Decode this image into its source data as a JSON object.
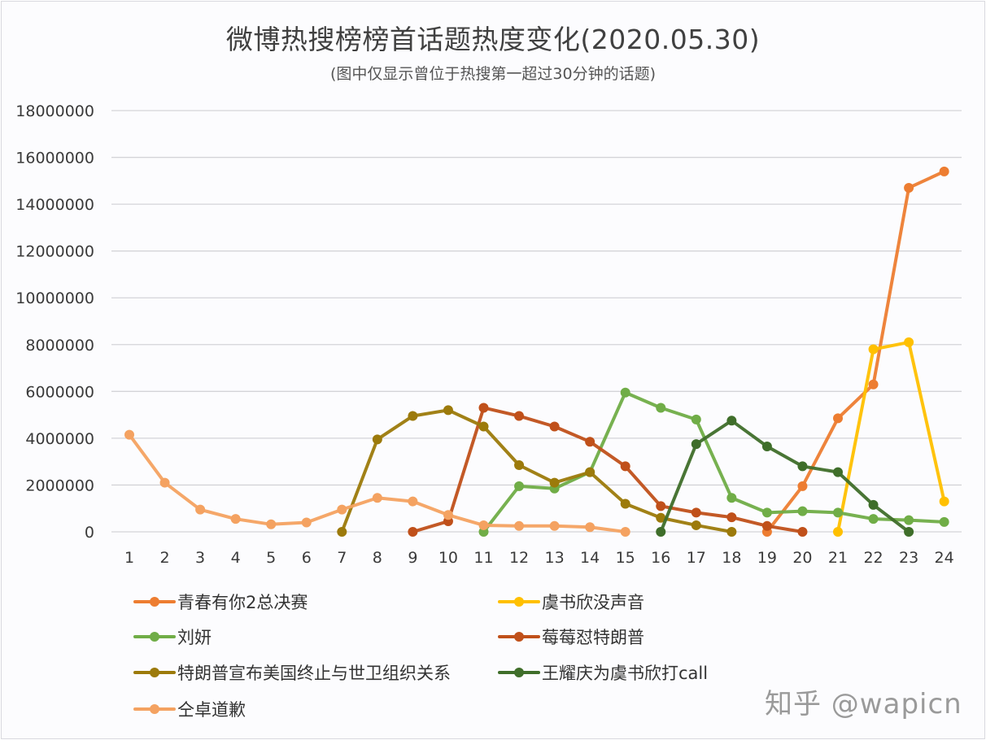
{
  "title": "微博热搜榜榜首话题热度变化(2020.05.30)",
  "subtitle": "(图中仅显示曾位于热搜第一超过30分钟的话题)",
  "watermark": "知乎 @wapicn",
  "chart_data": {
    "type": "line",
    "title": "微博热搜榜榜首话题热度变化(2020.05.30)",
    "subtitle": "(图中仅显示曾位于热搜第一超过30分钟的话题)",
    "xlabel": "",
    "ylabel": "",
    "x": [
      1,
      2,
      3,
      4,
      5,
      6,
      7,
      8,
      9,
      10,
      11,
      12,
      13,
      14,
      15,
      16,
      17,
      18,
      19,
      20,
      21,
      22,
      23,
      24
    ],
    "ylim": [
      0,
      18000000
    ],
    "yticks": [
      0,
      2000000,
      4000000,
      6000000,
      8000000,
      10000000,
      12000000,
      14000000,
      16000000,
      18000000
    ],
    "ytick_labels": [
      "0",
      "2000000",
      "4000000",
      "6000000",
      "8000000",
      "10000000",
      "12000000",
      "14000000",
      "16000000",
      "18000000"
    ],
    "grid": "horizontal",
    "legend_position": "bottom",
    "series": [
      {
        "name": "青春有你2总决赛",
        "color": "#ED7D31",
        "start": 19,
        "values": [
          null,
          null,
          null,
          null,
          null,
          null,
          null,
          null,
          null,
          null,
          null,
          null,
          null,
          null,
          null,
          null,
          null,
          null,
          0,
          1950000,
          4850000,
          6300000,
          14700000,
          15400000
        ]
      },
      {
        "name": "虞书欣没声音",
        "color": "#FFC000",
        "start": 21,
        "values": [
          null,
          null,
          null,
          null,
          null,
          null,
          null,
          null,
          null,
          null,
          null,
          null,
          null,
          null,
          null,
          null,
          null,
          null,
          null,
          null,
          0,
          7800000,
          8100000,
          1300000
        ]
      },
      {
        "name": "刘妍",
        "color": "#70AD47",
        "start": 11,
        "values": [
          null,
          null,
          null,
          null,
          null,
          null,
          null,
          null,
          null,
          null,
          0,
          1950000,
          1850000,
          2550000,
          5950000,
          5300000,
          4800000,
          1450000,
          820000,
          880000,
          820000,
          550000,
          500000,
          420000
        ]
      },
      {
        "name": "莓莓怼特朗普",
        "color": "#C0501A",
        "start": 9,
        "values": [
          null,
          null,
          null,
          null,
          null,
          null,
          null,
          null,
          0,
          450000,
          5300000,
          4950000,
          4500000,
          3850000,
          2800000,
          1100000,
          820000,
          620000,
          250000,
          0,
          null,
          null,
          null,
          null
        ]
      },
      {
        "name": "特朗普宣布美国终止与世卫组织关系",
        "color": "#9C7A0B",
        "start": 7,
        "values": [
          null,
          null,
          null,
          null,
          null,
          null,
          0,
          3950000,
          4950000,
          5200000,
          4500000,
          2850000,
          2100000,
          2550000,
          1200000,
          600000,
          280000,
          0,
          null,
          null,
          null,
          null,
          null,
          null
        ]
      },
      {
        "name": "王耀庆为虞书欣打call",
        "color": "#3F6E2A",
        "start": 16,
        "values": [
          null,
          null,
          null,
          null,
          null,
          null,
          null,
          null,
          null,
          null,
          null,
          null,
          null,
          null,
          null,
          0,
          3750000,
          4750000,
          3650000,
          2800000,
          2550000,
          1150000,
          0,
          null
        ]
      },
      {
        "name": "仝卓道歉",
        "color": "#F4A261",
        "start": 1,
        "values": [
          4150000,
          2100000,
          950000,
          550000,
          320000,
          400000,
          950000,
          1450000,
          1300000,
          720000,
          280000,
          250000,
          250000,
          200000,
          0,
          null,
          null,
          null,
          null,
          null,
          null,
          null,
          null,
          null
        ]
      }
    ]
  },
  "legend": [
    {
      "label": "青春有你2总决赛",
      "color": "#ED7D31"
    },
    {
      "label": "虞书欣没声音",
      "color": "#FFC000"
    },
    {
      "label": "刘妍",
      "color": "#70AD47"
    },
    {
      "label": "莓莓怼特朗普",
      "color": "#C0501A"
    },
    {
      "label": "特朗普宣布美国终止与世卫组织关系",
      "color": "#9C7A0B"
    },
    {
      "label": "王耀庆为虞书欣打call",
      "color": "#3F6E2A"
    },
    {
      "label": "仝卓道歉",
      "color": "#F4A261"
    }
  ]
}
